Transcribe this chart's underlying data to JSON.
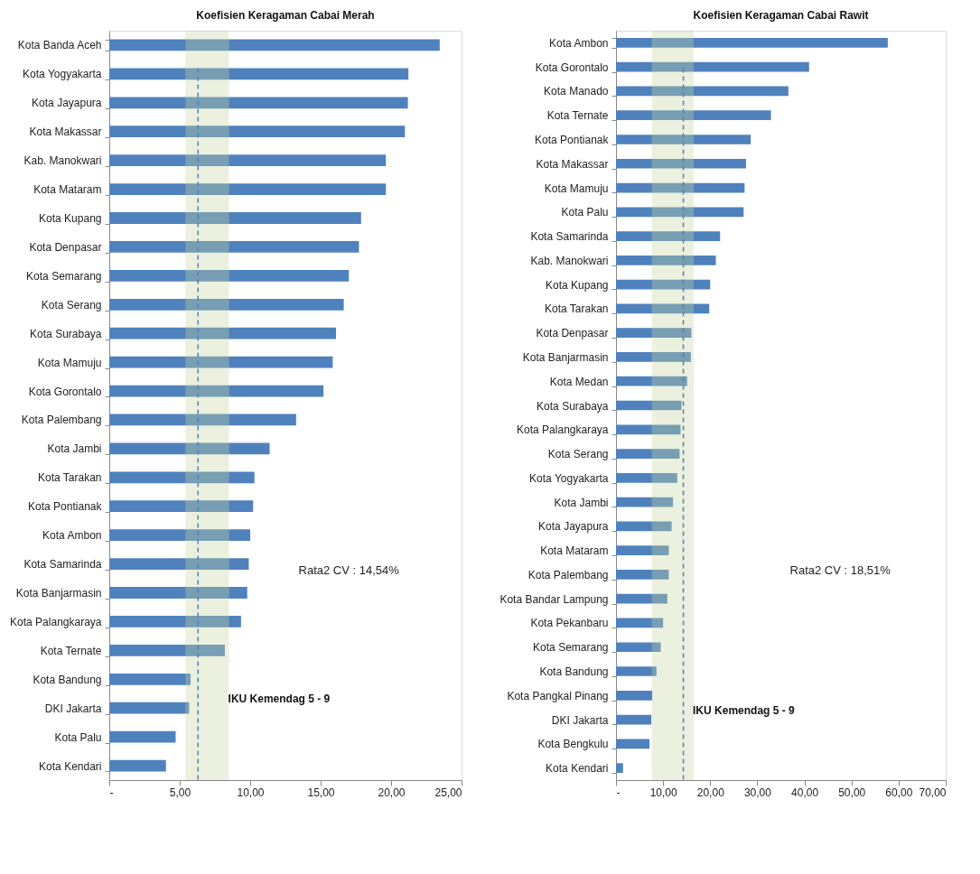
{
  "chart_data": [
    {
      "type": "bar",
      "orientation": "horizontal",
      "title": "Koefisien Keragaman Cabai Merah",
      "categories": [
        "Kota Banda Aceh",
        "Kota Yogyakarta",
        "Kota Jayapura",
        "Kota Makassar",
        "Kab. Manokwari",
        "Kota Mataram",
        "Kota Kupang",
        "Kota Denpasar",
        "Kota Semarang",
        "Kota Serang",
        "Kota Surabaya",
        "Kota Mamuju",
        "Kota Gorontalo",
        "Kota Palembang",
        "Kota Jambi",
        "Kota Tarakan",
        "Kota Pontianak",
        "Kota Ambon",
        "Kota Samarinda",
        "Kota Banjarmasin",
        "Kota Palangkaraya",
        "Kota Ternate",
        "Kota Bandung",
        "DKI Jakarta",
        "Kota Palu",
        "Kota Kendari"
      ],
      "values": [
        23.45,
        21.23,
        21.19,
        20.98,
        19.63,
        19.63,
        17.87,
        17.72,
        17.0,
        16.64,
        16.09,
        15.86,
        15.2,
        13.26,
        11.38,
        10.3,
        10.21,
        10.0,
        9.9,
        9.79,
        9.35,
        8.2,
        5.77,
        5.67,
        4.71,
        4.02
      ],
      "color": "#4f81bd",
      "xlim": [
        0,
        25
      ],
      "xticks": [
        {
          "value": 0,
          "label": "-"
        },
        {
          "value": 5,
          "label": "5,00"
        },
        {
          "value": 10,
          "label": "10,00"
        },
        {
          "value": 15,
          "label": "15,00"
        },
        {
          "value": 20,
          "label": "20,00"
        },
        {
          "value": 25,
          "label": "25,00"
        }
      ],
      "grid": false,
      "bands": [
        {
          "axis": "x",
          "from": 5.4,
          "to": 8.5,
          "label": "IKU Kemendag 5 - 9",
          "color": "#c4d69e"
        }
      ],
      "ref_lines": [
        {
          "axis": "x",
          "value": 6.3,
          "label": null,
          "color": "#4f81bd",
          "line_style": "dashed"
        }
      ],
      "annotations": [
        "Rata2 CV : 14,54%"
      ]
    },
    {
      "type": "bar",
      "orientation": "horizontal",
      "title": "Koefisien Keragaman Cabai Rawit",
      "categories": [
        "Kota Ambon",
        "Kota Gorontalo",
        "Kota Manado",
        "Kota Ternate",
        "Kota Pontianak",
        "Kota Makassar",
        "Kota Mamuju",
        "Kota Palu",
        "Kota Samarinda",
        "Kab. Manokwari",
        "Kota Kupang",
        "Kota Tarakan",
        "Kota Denpasar",
        "Kota Banjarmasin",
        "Kota Medan",
        "Kota Surabaya",
        "Kota Palangkaraya",
        "Kota Serang",
        "Kota Yogyakarta",
        "Kota Jambi",
        "Kota Jayapura",
        "Kota Mataram",
        "Kota Palembang",
        "Kota Bandar Lampung",
        "Kota Pekanbaru",
        "Kota Semarang",
        "Kota Bandung",
        "Kota Pangkal Pinang",
        "DKI Jakarta",
        "Kota Bengkulu",
        "Kota Kendari"
      ],
      "values": [
        57.7,
        41.0,
        36.6,
        32.9,
        28.6,
        27.6,
        27.3,
        27.1,
        22.1,
        21.2,
        20.0,
        19.8,
        16.0,
        15.9,
        15.1,
        13.9,
        13.7,
        13.5,
        13.0,
        12.1,
        11.8,
        11.2,
        11.2,
        10.9,
        10.0,
        9.5,
        8.6,
        7.7,
        7.5,
        7.1,
        1.5
      ],
      "color": "#4f81bd",
      "xlim": [
        0,
        70
      ],
      "xticks": [
        {
          "value": 0,
          "label": "-"
        },
        {
          "value": 10,
          "label": "10,00"
        },
        {
          "value": 20,
          "label": "20,00"
        },
        {
          "value": 30,
          "label": "30,00"
        },
        {
          "value": 40,
          "label": "40,00"
        },
        {
          "value": 50,
          "label": "50,00"
        },
        {
          "value": 60,
          "label": "60,00"
        },
        {
          "value": 70,
          "label": "70,00"
        }
      ],
      "grid": false,
      "bands": [
        {
          "axis": "x",
          "from": 7.6,
          "to": 16.5,
          "label": "IKU Kemendag 5 - 9",
          "color": "#c4d69e"
        }
      ],
      "ref_lines": [
        {
          "axis": "x",
          "value": 14.3,
          "label": null,
          "color": "#4f81bd",
          "line_style": "dashed"
        }
      ],
      "annotations": [
        "Rata2 CV : 18,51%"
      ]
    }
  ]
}
